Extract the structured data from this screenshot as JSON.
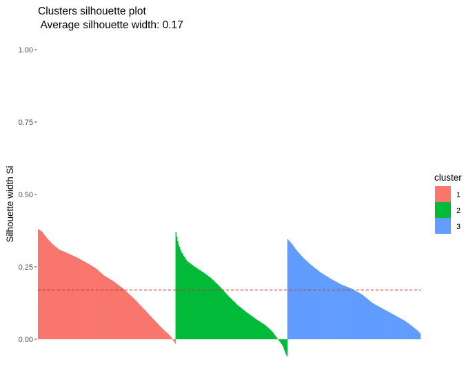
{
  "chart_data": {
    "type": "bar",
    "title": "Clusters silhouette plot",
    "subtitle": " Average silhouette width: 0.17",
    "xlabel": "",
    "ylabel": "Silhouette width Si",
    "ylim": [
      -0.06,
      1.02
    ],
    "y_ticks": [
      "0.00",
      "0.25",
      "0.50",
      "0.75",
      "1.00"
    ],
    "grid": false,
    "legend": {
      "title": "cluster",
      "position": "right",
      "entries": [
        "1",
        "2",
        "3"
      ]
    },
    "colors": {
      "1": "#F8766D",
      "2": "#00BA38",
      "3": "#619CFF",
      "average_line": "#D62728"
    },
    "average_silhouette": 0.17,
    "clusters": [
      {
        "name": "1",
        "count": 160,
        "profile": [
          [
            0,
            0.38
          ],
          [
            0.03,
            0.37
          ],
          [
            0.06,
            0.35
          ],
          [
            0.1,
            0.33
          ],
          [
            0.15,
            0.31
          ],
          [
            0.2,
            0.3
          ],
          [
            0.27,
            0.285
          ],
          [
            0.35,
            0.265
          ],
          [
            0.42,
            0.245
          ],
          [
            0.48,
            0.22
          ],
          [
            0.55,
            0.2
          ],
          [
            0.62,
            0.175
          ],
          [
            0.7,
            0.14
          ],
          [
            0.78,
            0.1
          ],
          [
            0.85,
            0.065
          ],
          [
            0.9,
            0.04
          ],
          [
            0.95,
            0.018
          ],
          [
            0.975,
            0.005
          ],
          [
            0.985,
            -0.002
          ],
          [
            1.0,
            -0.015
          ]
        ]
      },
      {
        "name": "2",
        "count": 130,
        "profile": [
          [
            0,
            0.37
          ],
          [
            0.02,
            0.33
          ],
          [
            0.05,
            0.3
          ],
          [
            0.1,
            0.27
          ],
          [
            0.17,
            0.25
          ],
          [
            0.25,
            0.23
          ],
          [
            0.32,
            0.21
          ],
          [
            0.4,
            0.18
          ],
          [
            0.47,
            0.15
          ],
          [
            0.55,
            0.12
          ],
          [
            0.63,
            0.095
          ],
          [
            0.72,
            0.07
          ],
          [
            0.8,
            0.05
          ],
          [
            0.86,
            0.03
          ],
          [
            0.9,
            0.01
          ],
          [
            0.93,
            -0.005
          ],
          [
            0.96,
            -0.02
          ],
          [
            0.98,
            -0.04
          ],
          [
            1.0,
            -0.058
          ]
        ]
      },
      {
        "name": "3",
        "count": 155,
        "profile": [
          [
            0,
            0.345
          ],
          [
            0.03,
            0.33
          ],
          [
            0.07,
            0.305
          ],
          [
            0.12,
            0.28
          ],
          [
            0.18,
            0.255
          ],
          [
            0.25,
            0.23
          ],
          [
            0.32,
            0.21
          ],
          [
            0.4,
            0.19
          ],
          [
            0.48,
            0.175
          ],
          [
            0.56,
            0.155
          ],
          [
            0.64,
            0.125
          ],
          [
            0.72,
            0.105
          ],
          [
            0.8,
            0.085
          ],
          [
            0.88,
            0.065
          ],
          [
            0.94,
            0.045
          ],
          [
            0.98,
            0.03
          ],
          [
            1.0,
            0.02
          ]
        ]
      }
    ]
  }
}
